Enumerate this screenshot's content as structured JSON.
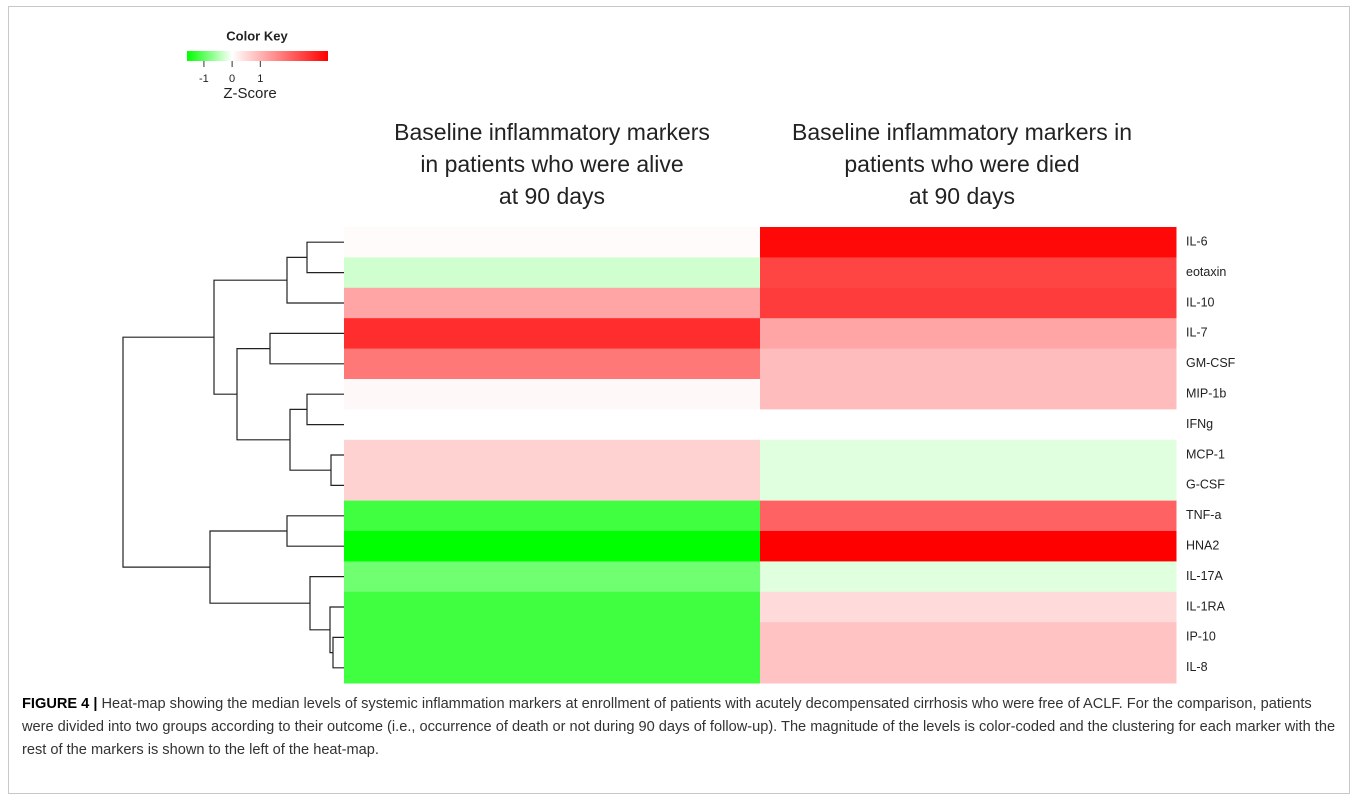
{
  "chart_data": {
    "type": "heatmap",
    "key_title": "Color Key",
    "key_label": "Z-Score",
    "zlim": [
      -1.6,
      3.4
    ],
    "key_ticks": [
      -1,
      0,
      1
    ],
    "colors": [
      "#00ff00",
      "#ffffff",
      "#ff0000"
    ],
    "columns": [
      [
        "Baseline inflammatory markers",
        "in patients who were alive",
        "at 90 days"
      ],
      [
        "Baseline inflammatory markers in",
        "patients who were died",
        "at 90 days"
      ]
    ],
    "rows": [
      "IL-6",
      "eotaxin",
      "IL-10",
      "IL-7",
      "GM-CSF",
      "MIP-1b",
      "IFNg",
      "MCP-1",
      "G-CSF",
      "TNF-a",
      "HNA2",
      "IL-17A",
      "IL-1RA",
      "IP-10",
      "IL-8"
    ],
    "values": [
      [
        0.05,
        3.3
      ],
      [
        -0.3,
        2.5
      ],
      [
        1.2,
        2.6
      ],
      [
        2.8,
        1.2
      ],
      [
        1.8,
        0.9
      ],
      [
        0.1,
        0.9
      ],
      [
        0,
        0
      ],
      [
        0.6,
        -0.2
      ],
      [
        0.6,
        -0.2
      ],
      [
        -1.2,
        2.1
      ],
      [
        -1.6,
        3.4
      ],
      [
        -0.9,
        -0.2
      ],
      [
        -1.2,
        0.5
      ],
      [
        -1.2,
        0.8
      ],
      [
        -1.2,
        0.8
      ]
    ]
  },
  "caption": {
    "label": "FIGURE 4 |",
    "text": "Heat-map showing the median levels of systemic inflammation markers at enrollment of patients with acutely decompensated cirrhosis who were free of ACLF. For the comparison, patients were divided into two groups according to their outcome (i.e., occurrence of death or not during 90 days of follow-up). The magnitude of the levels is color-coded and the clustering for each marker with the rest of the markers is shown to the left of the heat-map."
  }
}
